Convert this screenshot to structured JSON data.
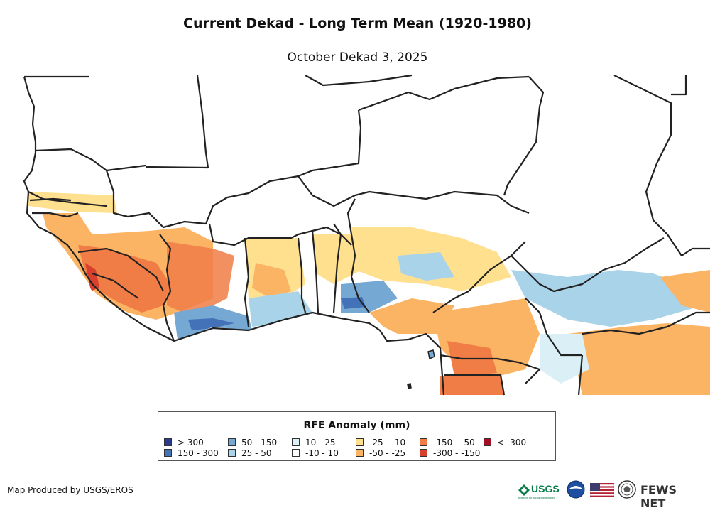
{
  "title": "Current Dekad - Long Term Mean (1920-1980)",
  "subtitle": "October Dekad 3, 2025",
  "legend": {
    "title": "RFE Anomaly (mm)",
    "items": [
      {
        "label": "> 300",
        "color": "#2b3c8f"
      },
      {
        "label": "150 - 300",
        "color": "#4472b8"
      },
      {
        "label": "50 - 150",
        "color": "#75a8d2"
      },
      {
        "label": "25 - 50",
        "color": "#a9d3e8"
      },
      {
        "label": "10 - 25",
        "color": "#dbeff6"
      },
      {
        "label": "-10 - 10",
        "color": "#ffffff"
      },
      {
        "label": "-25 - -10",
        "color": "#fee08f"
      },
      {
        "label": "-50 - -25",
        "color": "#fbb464"
      },
      {
        "label": "-150 - -50",
        "color": "#f07d46"
      },
      {
        "label": "-300 - -150",
        "color": "#d7402c"
      },
      {
        "label": "< -300",
        "color": "#a50f26"
      }
    ]
  },
  "credit": "Map Produced by USGS/EROS",
  "logos": {
    "usgs": "USGS",
    "usgs_tagline": "science for a changing world",
    "fews": "FEWS NET",
    "icons": [
      "usgs-logo-icon",
      "noaa-logo-icon",
      "us-flag-icon",
      "state-department-seal-icon"
    ]
  }
}
